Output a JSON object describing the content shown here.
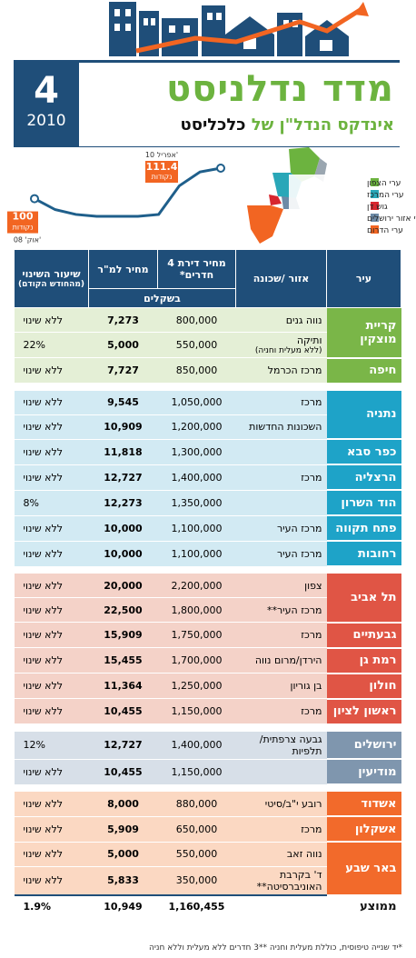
{
  "header": {
    "issue": "4",
    "year": "2010",
    "title": "מדד נדלניסט",
    "subtitle_prefix": "אינדקס הנדל\"ן של",
    "subtitle_brand": "כלכליסט"
  },
  "trend": {
    "type": "line",
    "color": "#1f5f8b",
    "categories": [
      "אוק' 08'",
      null,
      null,
      null,
      null,
      null,
      null,
      null,
      null,
      "אפריל 10'"
    ],
    "values": [
      100,
      95.9,
      94.1,
      93.4,
      93.4,
      93.4,
      94.1,
      104.8,
      110,
      111.4
    ],
    "unit": "נקודות"
  },
  "map_legend": [
    {
      "name": "ערי הצפון",
      "color": "#6cb33f"
    },
    {
      "name": "ערי המרכז",
      "color": "#2aa7b8"
    },
    {
      "name": "גוש דן",
      "color": "#d7262e"
    },
    {
      "name": "ערי אזור ירושלים",
      "color": "#6d8aa6"
    },
    {
      "name": "ערי הדרום",
      "color": "#f26522"
    }
  ],
  "table": {
    "headers": {
      "city": "עיר",
      "area": "אזור /שכונה",
      "price": "מחיר דירת 4 חדרים*",
      "price_sqm": "מחיר למ\"ר",
      "change": "שיעור השינוי",
      "change_note": "(מהחודש הקודם)",
      "currency": "בשקלים"
    },
    "groups": [
      {
        "color": "#7ab648",
        "light": "#e4efd6",
        "cities": [
          {
            "name": "קריית מוצקין",
            "rows": [
              {
                "area": "נווה גנים",
                "price": "800,000",
                "price_sqm": "7,273",
                "change": "ללא שינוי"
              },
              {
                "area": "ותיקה",
                "area_note": "(ללא מעלית וחניה)",
                "price": "550,000",
                "price_sqm": "5,000",
                "change": "22%"
              }
            ]
          },
          {
            "name": "חיפה",
            "rows": [
              {
                "area": "מרכז הכרמל",
                "price": "850,000",
                "price_sqm": "7,727",
                "change": "ללא שינוי"
              }
            ]
          }
        ]
      },
      {
        "color": "#1ea3c8",
        "light": "#d2eaf3",
        "cities": [
          {
            "name": "נתניה",
            "rows": [
              {
                "area": "מרכז",
                "price": "1,050,000",
                "price_sqm": "9,545",
                "change": "ללא שינוי"
              },
              {
                "area": "השכונות החדשות",
                "price": "1,200,000",
                "price_sqm": "10,909",
                "change": "ללא שינוי"
              }
            ]
          },
          {
            "name": "כפר סבא",
            "rows": [
              {
                "price": "1,300,000",
                "price_sqm": "11,818",
                "change": "ללא שינוי"
              }
            ]
          },
          {
            "name": "הרצליה",
            "rows": [
              {
                "area": "מרכז",
                "price": "1,400,000",
                "price_sqm": "12,727",
                "change": "ללא שינוי"
              }
            ]
          },
          {
            "name": "הוד השרון",
            "rows": [
              {
                "price": "1,350,000",
                "price_sqm": "12,273",
                "change": "8%"
              }
            ]
          },
          {
            "name": "פתח תקווה",
            "rows": [
              {
                "area": "מרכז העיר",
                "price": "1,100,000",
                "price_sqm": "10,000",
                "change": "ללא שינוי"
              }
            ]
          },
          {
            "name": "רחובות",
            "rows": [
              {
                "area": "מרכז העיר",
                "price": "1,100,000",
                "price_sqm": "10,000",
                "change": "ללא שינוי"
              }
            ]
          }
        ]
      },
      {
        "color": "#e05545",
        "light": "#f4d2c8",
        "cities": [
          {
            "name": "תל אביב",
            "rows": [
              {
                "area": "צפון",
                "price": "2,200,000",
                "price_sqm": "20,000",
                "change": "ללא שינוי"
              },
              {
                "area": "מרכז העיר**",
                "price": "1,800,000",
                "price_sqm": "22,500",
                "change": "ללא שינוי"
              }
            ]
          },
          {
            "name": "גבעתיים",
            "rows": [
              {
                "area": "מרכז",
                "price": "1,750,000",
                "price_sqm": "15,909",
                "change": "ללא שינוי"
              }
            ]
          },
          {
            "name": "רמת גן",
            "rows": [
              {
                "area": "הירדן/מרום נווה",
                "price": "1,700,000",
                "price_sqm": "15,455",
                "change": "ללא שינוי"
              }
            ]
          },
          {
            "name": "חולון",
            "rows": [
              {
                "area": "בן גוריון",
                "price": "1,250,000",
                "price_sqm": "11,364",
                "change": "ללא שינוי"
              }
            ]
          },
          {
            "name": "ראשון לציון",
            "rows": [
              {
                "area": "מרכז",
                "price": "1,150,000",
                "price_sqm": "10,455",
                "change": "ללא שינוי"
              }
            ]
          }
        ]
      },
      {
        "color": "#7f96ae",
        "light": "#d7dfe8",
        "cities": [
          {
            "name": "ירושלים",
            "rows": [
              {
                "area": "גבעה צרפתית/ תלפיות",
                "price": "1,400,000",
                "price_sqm": "12,727",
                "change": "12%"
              }
            ]
          },
          {
            "name": "מודיעין",
            "rows": [
              {
                "price": "1,150,000",
                "price_sqm": "10,455",
                "change": "ללא שינוי"
              }
            ]
          }
        ]
      },
      {
        "color": "#f26a2b",
        "light": "#fbd8c2",
        "cities": [
          {
            "name": "אשדוד",
            "rows": [
              {
                "area": "רובע י\"ב/סיטי",
                "price": "880,000",
                "price_sqm": "8,000",
                "change": "ללא שינוי"
              }
            ]
          },
          {
            "name": "אשקלון",
            "rows": [
              {
                "area": "מרכז",
                "price": "650,000",
                "price_sqm": "5,909",
                "change": "ללא שינוי"
              }
            ]
          },
          {
            "name": "באר שבע",
            "rows": [
              {
                "area": "נווה זאב",
                "price": "550,000",
                "price_sqm": "5,000",
                "change": "ללא שינוי"
              },
              {
                "area": "ד' בקרבת האוניברסיטה**",
                "price": "350,000",
                "price_sqm": "5,833",
                "change": "ללא שינוי"
              }
            ]
          }
        ]
      }
    ],
    "average": {
      "label": "ממוצע",
      "price": "1,160,455",
      "price_sqm": "10,949",
      "change": "1.9%"
    }
  },
  "footnote": {
    "first": "*יד שנייה טיפוסית, כוללת מעלית וחניה",
    "second": "**3 חדרים ללא מעלית וללא חניה"
  }
}
